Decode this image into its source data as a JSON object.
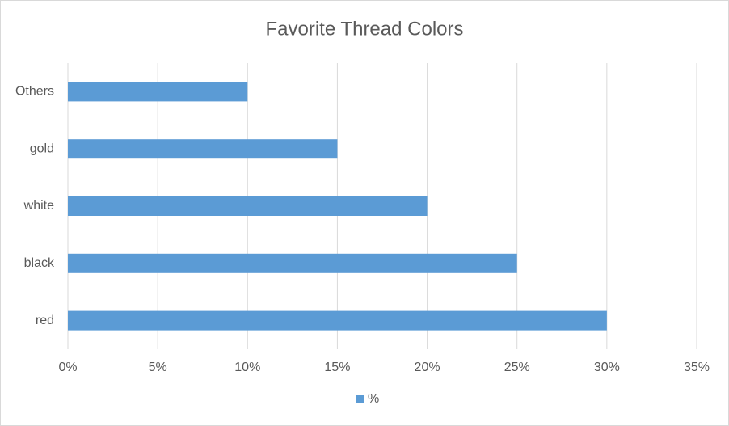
{
  "chart_data": {
    "type": "bar",
    "orientation": "horizontal",
    "title": "Favorite Thread Colors",
    "categories": [
      "red",
      "black",
      "white",
      "gold",
      "Others"
    ],
    "series": [
      {
        "name": "%",
        "color": "#5b9bd5",
        "values": [
          30,
          25,
          20,
          15,
          10
        ]
      }
    ],
    "xlim": [
      0,
      35
    ],
    "xticks": [
      {
        "value": 0,
        "label": "0%"
      },
      {
        "value": 5,
        "label": "5%"
      },
      {
        "value": 10,
        "label": "10%"
      },
      {
        "value": 15,
        "label": "15%"
      },
      {
        "value": 20,
        "label": "20%"
      },
      {
        "value": 25,
        "label": "25%"
      },
      {
        "value": 30,
        "label": "30%"
      },
      {
        "value": 35,
        "label": "35%"
      }
    ],
    "grid": true,
    "legend": "bottom"
  }
}
